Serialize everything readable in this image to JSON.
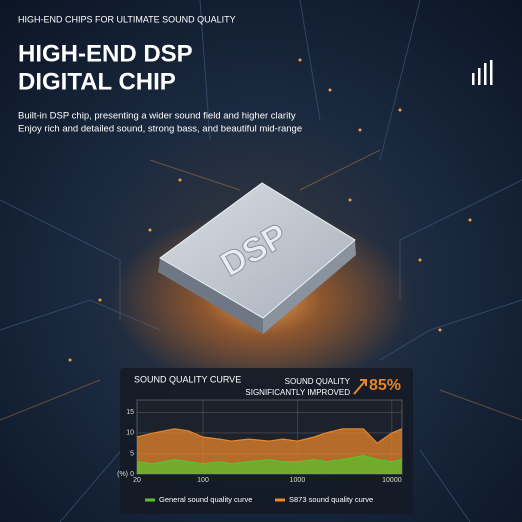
{
  "header": {
    "tagline": "HIGH-END CHIPS FOR ULTIMATE SOUND QUALITY",
    "title_line1": "HIGH-END DSP",
    "title_line2": "DIGITAL CHIP",
    "description_line1": "Built-in DSP chip, presenting a wider sound field and higher clarity",
    "description_line2": "Enjoy rich and detailed sound, strong bass, and beautiful mid-range"
  },
  "chip": {
    "label": "DSP"
  },
  "badge": {
    "line1": "SOUND QUALITY",
    "line2": "SIGNIFICANTLY IMPROVED",
    "value": "85%"
  },
  "chart_data": {
    "type": "area",
    "title": "SOUND QUALITY CURVE",
    "log_x": true,
    "y_unit": "(%)",
    "x": [
      20,
      30,
      50,
      70,
      100,
      150,
      200,
      300,
      500,
      700,
      1000,
      1500,
      2000,
      3000,
      5000,
      7000,
      10000,
      12800
    ],
    "xlim": [
      20,
      12800
    ],
    "xticks": [
      20,
      100,
      1000,
      10000
    ],
    "ylim": [
      0,
      18
    ],
    "yticks": [
      0,
      5,
      10,
      15
    ],
    "series": [
      {
        "name": "S873 sound quality curve",
        "color": "#e8842a",
        "values": [
          9,
          10,
          11,
          10.5,
          9,
          8.5,
          8,
          8.5,
          8,
          8.5,
          8,
          9,
          10,
          11,
          11,
          7.5,
          10,
          11
        ]
      },
      {
        "name": "General sound quality curve",
        "color": "#5cc02e",
        "values": [
          3,
          2.5,
          3.5,
          3,
          2.5,
          3,
          2.5,
          3,
          3.5,
          3,
          3,
          3.5,
          3,
          3.5,
          4.5,
          3.5,
          3,
          3.5
        ]
      }
    ]
  }
}
